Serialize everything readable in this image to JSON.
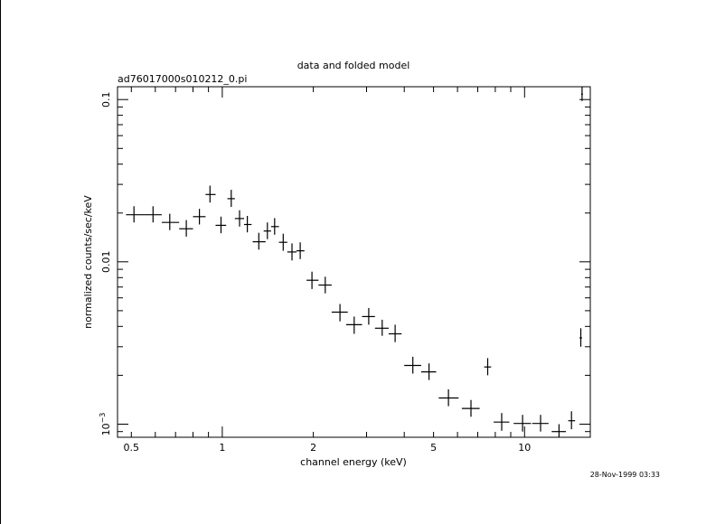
{
  "chart_data": {
    "type": "scatter",
    "title": "data and folded model",
    "subtitle": "ad76017000s010212_0.pi",
    "xlabel": "channel energy (keV)",
    "ylabel": "normalized counts/sec/keV",
    "timestamp": "28-Nov-1999 03:33",
    "x_scale": "log",
    "y_scale": "log",
    "xlim": [
      0.45,
      16.5
    ],
    "ylim": [
      0.00083,
      0.12
    ],
    "x_ticklabels": [
      {
        "value": 0.5,
        "label": "0.5"
      },
      {
        "value": 1,
        "label": "1"
      },
      {
        "value": 2,
        "label": "2"
      },
      {
        "value": 5,
        "label": "5"
      },
      {
        "value": 10,
        "label": "10"
      }
    ],
    "y_ticklabels": [
      {
        "value": 0.1,
        "label": "0.1"
      },
      {
        "value": 0.01,
        "label": "0.01"
      },
      {
        "value": 0.001,
        "label": "10",
        "exponent": "−3"
      }
    ],
    "points": [
      {
        "x": 0.51,
        "xlo": 0.48,
        "xhi": 0.55,
        "y": 0.0195,
        "ylo": 0.0175,
        "yhi": 0.022
      },
      {
        "x": 0.59,
        "xlo": 0.55,
        "xhi": 0.63,
        "y": 0.0195,
        "ylo": 0.0175,
        "yhi": 0.022
      },
      {
        "x": 0.67,
        "xlo": 0.63,
        "xhi": 0.72,
        "y": 0.0175,
        "ylo": 0.0157,
        "yhi": 0.0198
      },
      {
        "x": 0.76,
        "xlo": 0.72,
        "xhi": 0.8,
        "y": 0.016,
        "ylo": 0.0143,
        "yhi": 0.0181
      },
      {
        "x": 0.84,
        "xlo": 0.8,
        "xhi": 0.88,
        "y": 0.019,
        "ylo": 0.017,
        "yhi": 0.0212
      },
      {
        "x": 0.91,
        "xlo": 0.88,
        "xhi": 0.95,
        "y": 0.026,
        "ylo": 0.0232,
        "yhi": 0.0295
      },
      {
        "x": 0.99,
        "xlo": 0.95,
        "xhi": 1.03,
        "y": 0.0168,
        "ylo": 0.015,
        "yhi": 0.019
      },
      {
        "x": 1.07,
        "xlo": 1.04,
        "xhi": 1.1,
        "y": 0.0245,
        "ylo": 0.0218,
        "yhi": 0.0278
      },
      {
        "x": 1.14,
        "xlo": 1.1,
        "xhi": 1.18,
        "y": 0.0185,
        "ylo": 0.0165,
        "yhi": 0.0208
      },
      {
        "x": 1.21,
        "xlo": 1.18,
        "xhi": 1.25,
        "y": 0.017,
        "ylo": 0.0152,
        "yhi": 0.0192
      },
      {
        "x": 1.32,
        "xlo": 1.26,
        "xhi": 1.39,
        "y": 0.0133,
        "ylo": 0.0119,
        "yhi": 0.0151
      },
      {
        "x": 1.41,
        "xlo": 1.37,
        "xhi": 1.45,
        "y": 0.0155,
        "ylo": 0.0138,
        "yhi": 0.0175
      },
      {
        "x": 1.49,
        "xlo": 1.45,
        "xhi": 1.54,
        "y": 0.0165,
        "ylo": 0.0147,
        "yhi": 0.0186
      },
      {
        "x": 1.59,
        "xlo": 1.54,
        "xhi": 1.64,
        "y": 0.0132,
        "ylo": 0.0117,
        "yhi": 0.0149
      },
      {
        "x": 1.7,
        "xlo": 1.64,
        "xhi": 1.76,
        "y": 0.0115,
        "ylo": 0.0102,
        "yhi": 0.013
      },
      {
        "x": 1.81,
        "xlo": 1.76,
        "xhi": 1.87,
        "y": 0.0117,
        "ylo": 0.0104,
        "yhi": 0.0132
      },
      {
        "x": 1.98,
        "xlo": 1.9,
        "xhi": 2.08,
        "y": 0.0077,
        "ylo": 0.0068,
        "yhi": 0.0087
      },
      {
        "x": 2.19,
        "xlo": 2.08,
        "xhi": 2.3,
        "y": 0.0072,
        "ylo": 0.0064,
        "yhi": 0.0081
      },
      {
        "x": 2.45,
        "xlo": 2.3,
        "xhi": 2.6,
        "y": 0.0049,
        "ylo": 0.0043,
        "yhi": 0.0055
      },
      {
        "x": 2.73,
        "xlo": 2.57,
        "xhi": 2.9,
        "y": 0.0041,
        "ylo": 0.0036,
        "yhi": 0.0046
      },
      {
        "x": 3.05,
        "xlo": 2.9,
        "xhi": 3.2,
        "y": 0.0046,
        "ylo": 0.0041,
        "yhi": 0.0052
      },
      {
        "x": 3.38,
        "xlo": 3.2,
        "xhi": 3.55,
        "y": 0.0039,
        "ylo": 0.0035,
        "yhi": 0.0044
      },
      {
        "x": 3.73,
        "xlo": 3.55,
        "xhi": 3.92,
        "y": 0.0036,
        "ylo": 0.0032,
        "yhi": 0.0041
      },
      {
        "x": 4.27,
        "xlo": 4.0,
        "xhi": 4.55,
        "y": 0.0023,
        "ylo": 0.00205,
        "yhi": 0.0026
      },
      {
        "x": 4.83,
        "xlo": 4.55,
        "xhi": 5.1,
        "y": 0.0021,
        "ylo": 0.00187,
        "yhi": 0.00237
      },
      {
        "x": 5.6,
        "xlo": 5.2,
        "xhi": 6.05,
        "y": 0.00145,
        "ylo": 0.00129,
        "yhi": 0.00164
      },
      {
        "x": 6.65,
        "xlo": 6.2,
        "xhi": 7.1,
        "y": 0.00125,
        "ylo": 0.00111,
        "yhi": 0.00141
      },
      {
        "x": 7.55,
        "xlo": 7.35,
        "xhi": 7.75,
        "y": 0.00225,
        "ylo": 0.002,
        "yhi": 0.00255
      },
      {
        "x": 8.4,
        "xlo": 7.9,
        "xhi": 8.9,
        "y": 0.00103,
        "ylo": 0.00091,
        "yhi": 0.00117
      },
      {
        "x": 9.85,
        "xlo": 9.2,
        "xhi": 10.5,
        "y": 0.00101,
        "ylo": 0.0009,
        "yhi": 0.00114
      },
      {
        "x": 11.3,
        "xlo": 10.6,
        "xhi": 12.0,
        "y": 0.00101,
        "ylo": 0.0009,
        "yhi": 0.00114
      },
      {
        "x": 13.0,
        "xlo": 12.3,
        "xhi": 13.7,
        "y": 0.0009,
        "ylo": 0.00083,
        "yhi": 0.001
      },
      {
        "x": 14.3,
        "xlo": 13.95,
        "xhi": 14.7,
        "y": 0.00105,
        "ylo": 0.00093,
        "yhi": 0.0012
      },
      {
        "x": 15.35,
        "xlo": 15.2,
        "xhi": 15.5,
        "y": 0.0034,
        "ylo": 0.003,
        "yhi": 0.0039
      },
      {
        "x": 15.5,
        "xlo": 15.4,
        "xhi": 15.6,
        "y": 0.108,
        "ylo": 0.098,
        "yhi": 0.12
      }
    ]
  }
}
